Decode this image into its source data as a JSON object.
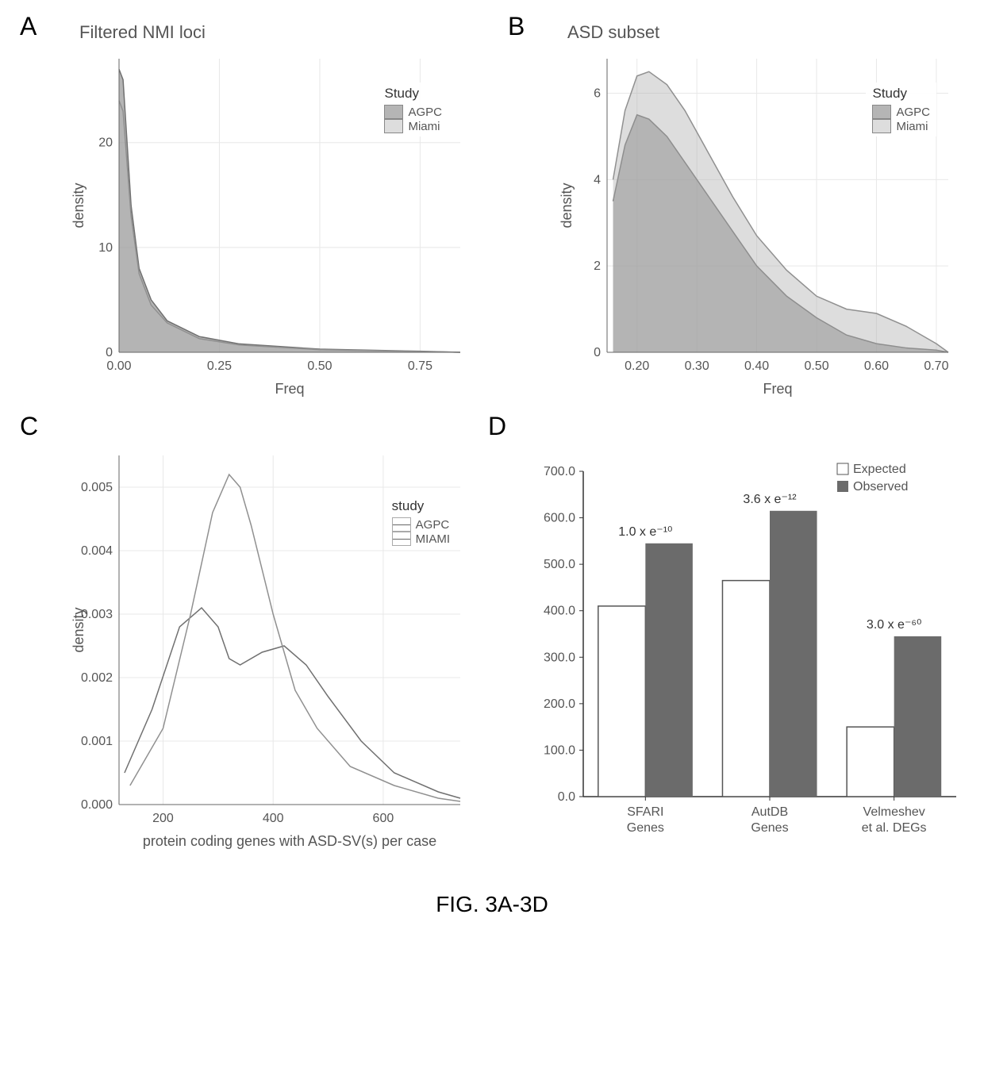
{
  "caption": "FIG. 3A-3D",
  "colors": {
    "series_agpc_fill": "rgba(120,120,120,0.55)",
    "series_miami_fill": "rgba(180,180,180,0.45)",
    "series_agpc_line": "#707070",
    "series_miami_line": "#909090",
    "axis": "#666666",
    "grid": "#e8e8e8",
    "bar_expected_fill": "#ffffff",
    "bar_expected_stroke": "#555555",
    "bar_observed_fill": "#6b6b6b",
    "text": "#555555"
  },
  "panelA": {
    "label": "A",
    "title": "Filtered NMI loci",
    "type": "density",
    "xlabel": "Freq",
    "ylabel": "density",
    "xlim": [
      0,
      0.85
    ],
    "ylim": [
      0,
      28
    ],
    "xticks": [
      0.0,
      0.25,
      0.5,
      0.75
    ],
    "yticks": [
      0,
      10,
      20
    ],
    "legend": {
      "title": "Study",
      "items": [
        "AGPC",
        "Miami"
      ]
    },
    "series": {
      "AGPC": {
        "x": [
          0.0,
          0.01,
          0.02,
          0.03,
          0.05,
          0.08,
          0.12,
          0.2,
          0.3,
          0.5,
          0.75,
          0.85
        ],
        "y": [
          27,
          26,
          20,
          14,
          8,
          5,
          3,
          1.5,
          0.8,
          0.3,
          0.1,
          0
        ]
      },
      "Miami": {
        "x": [
          0.0,
          0.01,
          0.02,
          0.03,
          0.05,
          0.08,
          0.12,
          0.2,
          0.3,
          0.5,
          0.75,
          0.85
        ],
        "y": [
          24,
          23,
          18,
          13,
          7.5,
          4.5,
          2.8,
          1.3,
          0.7,
          0.25,
          0.08,
          0
        ]
      }
    }
  },
  "panelB": {
    "label": "B",
    "title": "ASD subset",
    "type": "density",
    "xlabel": "Freq",
    "ylabel": "density",
    "xlim": [
      0.15,
      0.72
    ],
    "ylim": [
      0,
      6.8
    ],
    "xticks": [
      0.2,
      0.3,
      0.4,
      0.5,
      0.6,
      0.7
    ],
    "yticks": [
      0,
      2,
      4,
      6
    ],
    "legend": {
      "title": "Study",
      "items": [
        "AGPC",
        "Miami"
      ]
    },
    "series": {
      "AGPC": {
        "x": [
          0.16,
          0.18,
          0.2,
          0.22,
          0.25,
          0.28,
          0.32,
          0.36,
          0.4,
          0.45,
          0.5,
          0.55,
          0.6,
          0.65,
          0.7,
          0.72
        ],
        "y": [
          3.5,
          4.8,
          5.5,
          5.4,
          5.0,
          4.4,
          3.6,
          2.8,
          2.0,
          1.3,
          0.8,
          0.4,
          0.2,
          0.1,
          0.05,
          0
        ]
      },
      "Miami": {
        "x": [
          0.16,
          0.18,
          0.2,
          0.22,
          0.25,
          0.28,
          0.32,
          0.36,
          0.4,
          0.45,
          0.5,
          0.55,
          0.6,
          0.65,
          0.7,
          0.72
        ],
        "y": [
          4.0,
          5.6,
          6.4,
          6.5,
          6.2,
          5.6,
          4.6,
          3.6,
          2.7,
          1.9,
          1.3,
          1.0,
          0.9,
          0.6,
          0.2,
          0
        ]
      }
    }
  },
  "panelC": {
    "label": "C",
    "type": "density-line",
    "xlabel": "protein coding genes with ASD-SV(s) per case",
    "ylabel": "density",
    "xlim": [
      120,
      740
    ],
    "ylim": [
      0,
      0.0055
    ],
    "xticks": [
      200,
      400,
      600
    ],
    "yticks": [
      0.0,
      0.001,
      0.002,
      0.003,
      0.004,
      0.005
    ],
    "legend": {
      "title": "study",
      "items": [
        "AGPC",
        "MIAMI"
      ]
    },
    "series": {
      "AGPC": {
        "x": [
          130,
          180,
          230,
          270,
          300,
          320,
          340,
          380,
          420,
          460,
          500,
          560,
          620,
          700,
          740
        ],
        "y": [
          0.0005,
          0.0015,
          0.0028,
          0.0031,
          0.0028,
          0.0023,
          0.0022,
          0.0024,
          0.0025,
          0.0022,
          0.0017,
          0.001,
          0.0005,
          0.0002,
          0.0001
        ]
      },
      "MIAMI": {
        "x": [
          140,
          200,
          250,
          290,
          320,
          340,
          360,
          400,
          440,
          480,
          540,
          620,
          700,
          740
        ],
        "y": [
          0.0003,
          0.0012,
          0.003,
          0.0046,
          0.0052,
          0.005,
          0.0044,
          0.003,
          0.0018,
          0.0012,
          0.0006,
          0.0003,
          0.0001,
          5e-05
        ]
      }
    }
  },
  "panelD": {
    "label": "D",
    "type": "bar",
    "ylim": [
      0,
      700
    ],
    "yticks": [
      0.0,
      100.0,
      200.0,
      300.0,
      400.0,
      500.0,
      600.0,
      700.0
    ],
    "categories": [
      "SFARI\nGenes",
      "AutDB\nGenes",
      "Velmeshev\net al. DEGs"
    ],
    "legend_items": [
      "Expected",
      "Observed"
    ],
    "annotations": [
      "1.0 x e⁻¹⁰",
      "3.6 x e⁻¹²",
      "3.0 x e⁻⁶⁰"
    ],
    "series": {
      "Expected": [
        410,
        465,
        150
      ],
      "Observed": [
        545,
        615,
        345
      ]
    },
    "bar_width": 0.38
  }
}
